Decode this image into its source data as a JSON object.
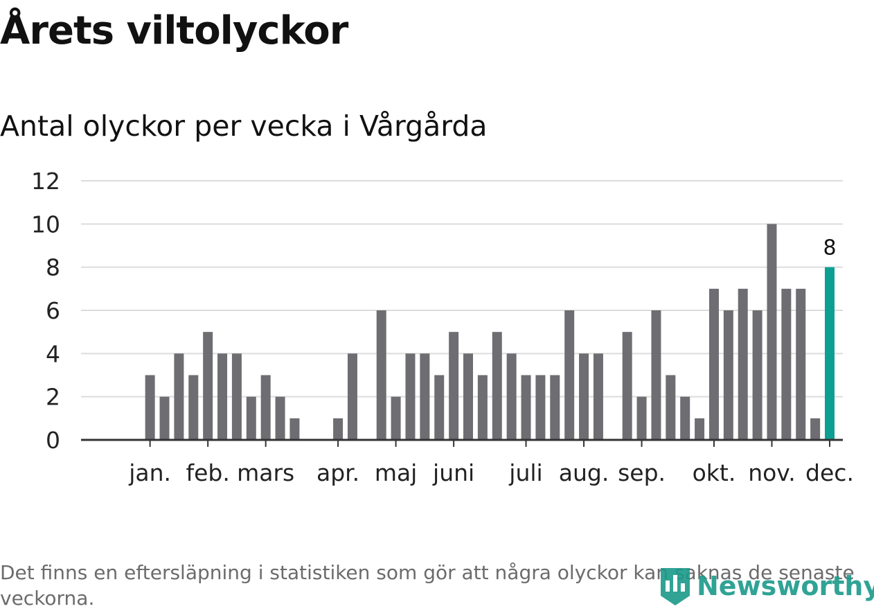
{
  "header": {
    "title": "Årets viltolyckor",
    "subtitle": "Antal olyckor per vecka i Vårgårda"
  },
  "footnote": "Det finns en eftersläpning i statistiken som gör att några olyckor kan saknas de senaste veckorna.",
  "branding": {
    "logo_text": "Newsworthy",
    "logo_color": "#1a9a8a"
  },
  "colors": {
    "bar": "#6e6d72",
    "highlight": "#0e9f93",
    "grid": "#dcdcdc",
    "axis": "#333333"
  },
  "chart_data": {
    "type": "bar",
    "title": "Antal olyckor per vecka i Vårgårda",
    "xlabel": "",
    "ylabel": "",
    "ylim": [
      0,
      12
    ],
    "yticks": [
      0,
      2,
      4,
      6,
      8,
      10,
      12
    ],
    "weeks": [
      1,
      2,
      3,
      4,
      5,
      6,
      7,
      8,
      9,
      10,
      11,
      12,
      13,
      14,
      15,
      16,
      17,
      18,
      19,
      20,
      21,
      22,
      23,
      24,
      25,
      26,
      27,
      28,
      29,
      30,
      31,
      32,
      33,
      34,
      35,
      36,
      37,
      38,
      39,
      40,
      41,
      42,
      43,
      44,
      45,
      46,
      47,
      48,
      49,
      50,
      51,
      52
    ],
    "values": [
      0,
      0,
      0,
      3,
      2,
      4,
      3,
      5,
      4,
      4,
      2,
      3,
      2,
      1,
      0,
      0,
      1,
      4,
      0,
      6,
      2,
      4,
      4,
      3,
      5,
      4,
      3,
      5,
      4,
      3,
      3,
      3,
      6,
      4,
      4,
      0,
      5,
      2,
      6,
      3,
      2,
      1,
      7,
      6,
      7,
      6,
      10,
      7,
      7,
      1,
      8,
      0
    ],
    "highlight_index": 50,
    "highlight_label": "8",
    "month_labels": [
      {
        "label": "jan.",
        "week": 4
      },
      {
        "label": "feb.",
        "week": 8
      },
      {
        "label": "mars",
        "week": 12
      },
      {
        "label": "apr.",
        "week": 17
      },
      {
        "label": "maj",
        "week": 21
      },
      {
        "label": "juni",
        "week": 25
      },
      {
        "label": "juli",
        "week": 30
      },
      {
        "label": "aug.",
        "week": 34
      },
      {
        "label": "sep.",
        "week": 38
      },
      {
        "label": "okt.",
        "week": 43
      },
      {
        "label": "nov.",
        "week": 47
      },
      {
        "label": "dec.",
        "week": 51
      }
    ]
  }
}
